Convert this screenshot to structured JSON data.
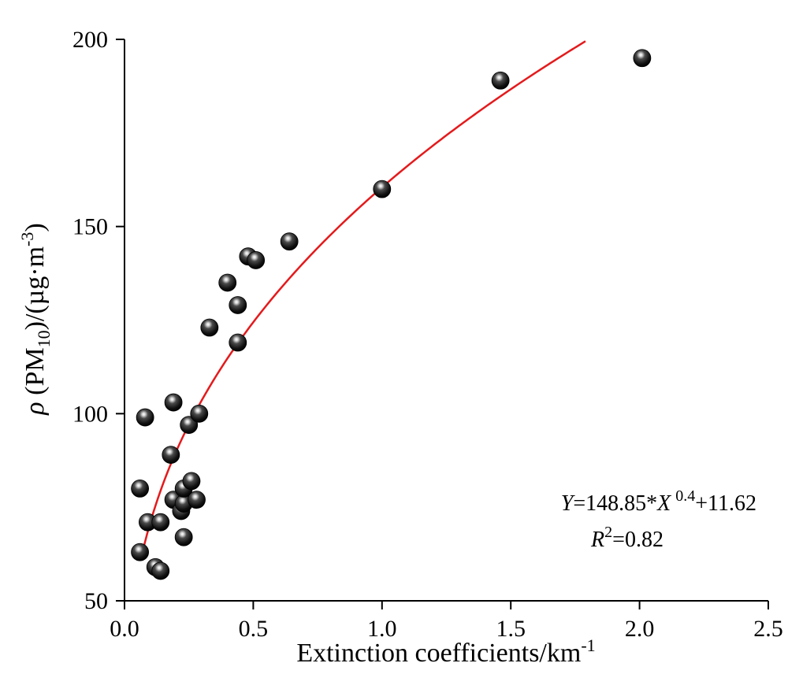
{
  "chart_data": {
    "type": "scatter",
    "xlabel": "Extinction coefficients/km",
    "xlabel_sup": "-1",
    "ylabel": {
      "rho": "ρ",
      "pre": " (PM",
      "sub": "10",
      "mid": ")/(µg·m",
      "sup": "-3",
      "post": ")"
    },
    "xlim": [
      0,
      2.5
    ],
    "ylim": [
      50,
      200
    ],
    "x_ticks": [
      "0.0",
      "0.5",
      "1.0",
      "1.5",
      "2.0",
      "2.5"
    ],
    "y_ticks": [
      "50",
      "100",
      "150",
      "200"
    ],
    "grid": false,
    "colors": {
      "fit": "#e41a1c",
      "marker": "#111111"
    },
    "points": [
      {
        "x": 0.06,
        "y": 63
      },
      {
        "x": 0.06,
        "y": 80
      },
      {
        "x": 0.08,
        "y": 99
      },
      {
        "x": 0.09,
        "y": 71
      },
      {
        "x": 0.12,
        "y": 59
      },
      {
        "x": 0.14,
        "y": 58
      },
      {
        "x": 0.14,
        "y": 71
      },
      {
        "x": 0.18,
        "y": 89
      },
      {
        "x": 0.19,
        "y": 103
      },
      {
        "x": 0.19,
        "y": 77
      },
      {
        "x": 0.22,
        "y": 74
      },
      {
        "x": 0.23,
        "y": 76
      },
      {
        "x": 0.23,
        "y": 67
      },
      {
        "x": 0.23,
        "y": 80
      },
      {
        "x": 0.25,
        "y": 97
      },
      {
        "x": 0.26,
        "y": 82
      },
      {
        "x": 0.28,
        "y": 77
      },
      {
        "x": 0.29,
        "y": 100
      },
      {
        "x": 0.33,
        "y": 123
      },
      {
        "x": 0.4,
        "y": 135
      },
      {
        "x": 0.44,
        "y": 129
      },
      {
        "x": 0.44,
        "y": 119
      },
      {
        "x": 0.48,
        "y": 142
      },
      {
        "x": 0.51,
        "y": 141
      },
      {
        "x": 0.64,
        "y": 146
      },
      {
        "x": 1.0,
        "y": 160
      },
      {
        "x": 1.46,
        "y": 189
      },
      {
        "x": 2.01,
        "y": 195
      }
    ],
    "fit": {
      "a": 148.85,
      "b": 0.4,
      "c": 11.62,
      "x_start": 0.07,
      "x_end": 1.79
    },
    "annotation": {
      "equation": {
        "y": "Y",
        "mid": "=148.85*",
        "x": "X",
        "exp": "0.4",
        "post": "+11.62"
      },
      "r2": {
        "r": "R",
        "sup": "2",
        "val": "=0.82"
      }
    }
  }
}
